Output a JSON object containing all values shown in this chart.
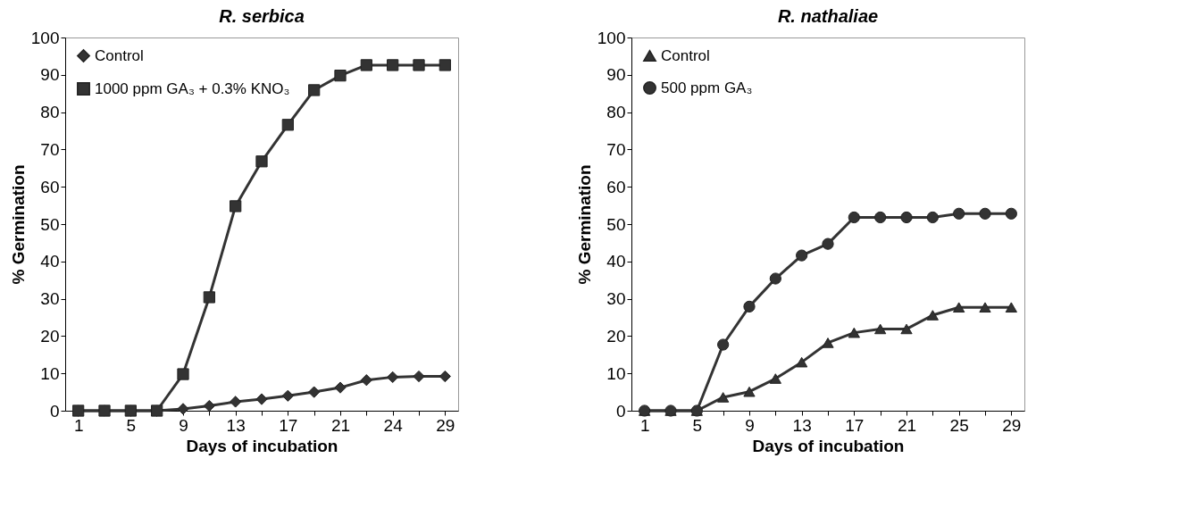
{
  "chart_data": [
    {
      "type": "line",
      "title": "R. serbica",
      "xlabel": "Days of incubation",
      "ylabel": "% Germination",
      "categories": [
        "1",
        null,
        "5",
        null,
        "9",
        null,
        "13",
        null,
        "17",
        null,
        "21",
        null,
        "24",
        null,
        "29"
      ],
      "ylim": [
        0,
        100
      ],
      "yticks": [
        0,
        10,
        20,
        30,
        40,
        50,
        60,
        70,
        80,
        90,
        100
      ],
      "grid": false,
      "legend": "top left",
      "series": [
        {
          "name": "Control",
          "color": "#333333",
          "marker": "diamond",
          "values": [
            0,
            0,
            0,
            0,
            0.5,
            1.3,
            2.4,
            3.1,
            4,
            5,
            6.2,
            8.2,
            9,
            9.2,
            9.2
          ]
        },
        {
          "name": "1000 ppm GA₃ + 0.3% KNO₃",
          "color": "#333333",
          "marker": "square",
          "values": [
            0,
            0,
            0,
            0,
            9.8,
            30.4,
            54.8,
            66.8,
            76.6,
            85.9,
            89.8,
            92.6,
            92.6,
            92.6,
            92.6
          ]
        }
      ]
    },
    {
      "type": "line",
      "title": "R. nathaliae",
      "xlabel": "Days of incubation",
      "ylabel": "% Germination",
      "categories": [
        "1",
        null,
        "5",
        null,
        "9",
        null,
        "13",
        null,
        "17",
        null,
        "21",
        null,
        "25",
        null,
        "29"
      ],
      "ylim": [
        0,
        100
      ],
      "yticks": [
        0,
        10,
        20,
        30,
        40,
        50,
        60,
        70,
        80,
        90,
        100
      ],
      "grid": false,
      "legend": "top left",
      "series": [
        {
          "name": "Control",
          "color": "#333333",
          "marker": "triangle",
          "values": [
            0,
            0,
            0,
            3.6,
            5.1,
            8.6,
            13,
            18.2,
            20.9,
            21.9,
            21.9,
            25.6,
            27.7,
            27.7,
            27.7
          ]
        },
        {
          "name": "500 ppm GA₃",
          "color": "#333333",
          "marker": "circle",
          "values": [
            0,
            0,
            0,
            17.7,
            27.9,
            35.4,
            41.6,
            44.7,
            51.8,
            51.8,
            51.8,
            51.8,
            52.8,
            52.8,
            52.8
          ]
        }
      ]
    }
  ]
}
